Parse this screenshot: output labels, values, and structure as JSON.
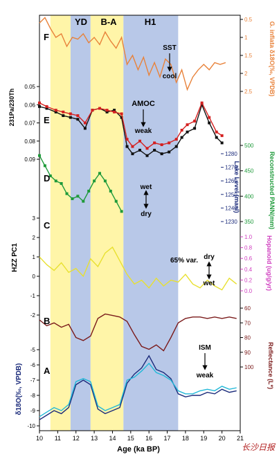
{
  "chart_data": {
    "type": "line",
    "xlabel": "Age (ka BP)",
    "xlim": [
      10,
      21
    ],
    "xticks": [
      10,
      11,
      12,
      13,
      14,
      15,
      16,
      17,
      18,
      19,
      20,
      21
    ],
    "shading": [
      {
        "label": "YD",
        "from": 11.7,
        "to": 12.8,
        "color": "#b8c8e8"
      },
      {
        "label": "B-A",
        "from": 12.8,
        "to": 14.6,
        "color": "#fff5a8"
      },
      {
        "label": "H1",
        "from": 14.6,
        "to": 17.6,
        "color": "#b8c8e8"
      },
      {
        "label": "",
        "from": 10.6,
        "to": 11.7,
        "color": "#fff5a8"
      }
    ],
    "panels": {
      "F": {
        "letter": "F",
        "ylabel": "G. inflata δ18O(‰, VPDB)",
        "ylim": [
          0.5,
          2.5
        ],
        "yticks": [
          0.5,
          1.0,
          1.5,
          2.0,
          2.5
        ],
        "annotation": [
          "SST",
          "cool"
        ],
        "series": [
          {
            "color": "#e8823a",
            "x": [
              10,
              10.3,
              10.6,
              10.9,
              11.2,
              11.5,
              11.8,
              12.1,
              12.4,
              12.7,
              13.0,
              13.3,
              13.6,
              13.9,
              14.2,
              14.5,
              14.8,
              15.1,
              15.4,
              15.7,
              16.0,
              16.3,
              16.6,
              16.9,
              17.2,
              17.5,
              17.8,
              18.1,
              18.4,
              18.7,
              19.0,
              19.3,
              19.6,
              19.9,
              20.2
            ],
            "y": [
              0.6,
              0.45,
              0.75,
              1.0,
              0.9,
              1.25,
              1.0,
              1.05,
              0.9,
              1.15,
              1.0,
              1.2,
              0.85,
              1.1,
              1.3,
              1.0,
              1.75,
              1.5,
              1.9,
              1.55,
              2.05,
              1.7,
              2.1,
              1.6,
              1.75,
              2.25,
              1.9,
              2.45,
              2.1,
              1.9,
              1.75,
              1.9,
              1.7,
              1.75,
              1.7
            ]
          }
        ]
      },
      "E": {
        "letter": "E",
        "ylabel": "231Pa/230Th",
        "ylim": [
          0.05,
          0.09
        ],
        "yticks": [
          0.05,
          0.06,
          0.07,
          0.08,
          0.09
        ],
        "annotation": [
          "AMOC",
          "weak"
        ],
        "series": [
          {
            "color": "#111111",
            "x": [
              10,
              10.4,
              10.9,
              11.3,
              11.7,
              12.1,
              12.5,
              12.9,
              13.3,
              13.7,
              14.1,
              14.5,
              14.8,
              15.1,
              15.5,
              15.9,
              16.3,
              16.7,
              17.1,
              17.5,
              17.8,
              18.1,
              18.5,
              18.9,
              19.3,
              19.7,
              20.0
            ],
            "y": [
              0.061,
              0.062,
              0.064,
              0.066,
              0.067,
              0.068,
              0.073,
              0.063,
              0.062,
              0.064,
              0.063,
              0.067,
              0.083,
              0.087,
              0.085,
              0.088,
              0.085,
              0.087,
              0.086,
              0.083,
              0.078,
              0.075,
              0.073,
              0.06,
              0.07,
              0.078,
              0.081
            ]
          },
          {
            "color": "#d42020",
            "x": [
              10,
              10.4,
              10.9,
              11.3,
              11.7,
              12.1,
              12.5,
              12.9,
              13.3,
              13.7,
              14.1,
              14.5,
              14.8,
              15.1,
              15.5,
              15.9,
              16.3,
              16.7,
              17.1,
              17.5,
              17.8,
              18.1,
              18.5,
              18.9,
              19.3,
              19.7,
              20.0
            ],
            "y": [
              0.059,
              0.061,
              0.063,
              0.064,
              0.065,
              0.066,
              0.07,
              0.063,
              0.062,
              0.063,
              0.064,
              0.065,
              0.079,
              0.083,
              0.08,
              0.084,
              0.081,
              0.082,
              0.081,
              0.079,
              0.074,
              0.071,
              0.069,
              0.059,
              0.067,
              0.075,
              0.077
            ]
          }
        ]
      },
      "D": {
        "letter": "D",
        "ylabel": "Reconstructed PANN(mm)",
        "ylabel_inner": "Lake Level (masl)",
        "ylim": [
          350,
          500
        ],
        "yticks": [
          350,
          400,
          450,
          500
        ],
        "inner_ticks": [
          1230,
          1240,
          1250,
          1260,
          1270,
          1280
        ],
        "annotation": [
          "wet",
          "dry"
        ],
        "series": [
          {
            "color": "#1e9a3a",
            "x": [
              10,
              10.3,
              10.6,
              10.9,
              11.2,
              11.5,
              11.8,
              12.1,
              12.4,
              12.7,
              13.0,
              13.3,
              13.6,
              13.9,
              14.2,
              14.5
            ],
            "y": [
              480,
              460,
              440,
              430,
              425,
              405,
              395,
              400,
              390,
              410,
              430,
              445,
              430,
              410,
              390,
              370
            ]
          }
        ]
      },
      "C": {
        "letter": "C",
        "ylabel": "HZZ PC1",
        "ylabel_right": "Hopanoid (ug/g/yr)",
        "ylim": [
          -2,
          3
        ],
        "yticks": [
          -2,
          -1,
          0,
          1,
          2,
          3
        ],
        "right_ticks": [
          0.0,
          0.2,
          0.4,
          0.6,
          0.8,
          1.0
        ],
        "annotation": [
          "65% var.",
          "dry",
          "wet"
        ],
        "series": [
          {
            "color": "#e8e030",
            "x": [
              10,
              10.4,
              10.8,
              11.2,
              11.6,
              12.0,
              12.4,
              12.8,
              13.2,
              13.6,
              14.0,
              14.4,
              14.8,
              15.2,
              15.6,
              16.0,
              16.4,
              16.8,
              17.2,
              17.6,
              18.0,
              18.4,
              18.8,
              19.2,
              19.6,
              20.0,
              20.4,
              20.8
            ],
            "y": [
              1.0,
              0.6,
              0.3,
              0.7,
              0.2,
              0.4,
              0.0,
              0.9,
              0.5,
              1.2,
              1.5,
              0.8,
              0.1,
              -0.4,
              -0.2,
              -0.6,
              -0.1,
              -0.5,
              -0.2,
              -0.3,
              0.1,
              -0.4,
              -0.6,
              -0.2,
              -0.5,
              -0.7,
              -0.1,
              -0.4
            ]
          }
        ]
      },
      "B": {
        "letter": "B",
        "ylabel": "Reflectance (L*)",
        "ylim": [
          60,
          100
        ],
        "yticks": [
          60,
          70,
          80,
          90,
          100
        ],
        "annotation": [
          "ISM",
          "weak"
        ],
        "series": [
          {
            "color": "#7a1a1a",
            "x": [
              10,
              10.4,
              10.8,
              11.2,
              11.6,
              12.0,
              12.4,
              12.8,
              13.2,
              13.6,
              14.0,
              14.4,
              14.8,
              15.2,
              15.6,
              16.0,
              16.4,
              16.8,
              17.2,
              17.6,
              18.0,
              18.4,
              18.8,
              19.2,
              19.6,
              20.0,
              20.4,
              20.8
            ],
            "y": [
              68,
              72,
              70,
              73,
              71,
              80,
              82,
              79,
              67,
              64,
              65,
              66,
              69,
              78,
              86,
              88,
              85,
              89,
              80,
              70,
              67,
              66,
              66,
              67,
              66,
              67,
              66,
              67
            ]
          }
        ]
      },
      "A": {
        "letter": "A",
        "ylabel": "δ18O(‰, VPDB)",
        "ylim": [
          -10,
          -5
        ],
        "yticks": [
          -10,
          -9,
          -8,
          -7,
          -6,
          -5
        ],
        "series": [
          {
            "color": "#1a2a7a",
            "x": [
              10,
              10.4,
              10.8,
              11.2,
              11.6,
              12.0,
              12.4,
              12.8,
              13.2,
              13.6,
              14.0,
              14.4,
              14.8,
              15.2,
              15.6,
              16.0,
              16.4,
              16.8,
              17.2,
              17.6,
              18.0,
              18.4,
              18.8,
              19.2,
              19.6,
              20.0,
              20.4,
              20.8
            ],
            "y": [
              -9.6,
              -9.3,
              -9.0,
              -9.2,
              -8.8,
              -7.3,
              -7.0,
              -7.3,
              -8.9,
              -9.2,
              -9.0,
              -8.8,
              -7.2,
              -6.6,
              -6.2,
              -5.4,
              -6.3,
              -6.5,
              -6.9,
              -7.9,
              -8.1,
              -8.0,
              -8.0,
              -7.8,
              -7.9,
              -7.6,
              -7.8,
              -7.7
            ]
          },
          {
            "color": "#20b8d8",
            "x": [
              10,
              10.4,
              10.8,
              11.2,
              11.6,
              12.0,
              12.4,
              12.8,
              13.2,
              13.6,
              14.0,
              14.4,
              14.8,
              15.2,
              15.6,
              16.0,
              16.4,
              16.8,
              17.2,
              17.6,
              18.0,
              18.4,
              18.8,
              19.2,
              19.6,
              20.0,
              20.4,
              20.8
            ],
            "y": [
              -9.4,
              -9.1,
              -8.8,
              -9.0,
              -8.6,
              -7.1,
              -6.9,
              -7.1,
              -8.7,
              -9.0,
              -8.8,
              -8.6,
              -7.0,
              -6.8,
              -6.4,
              -5.9,
              -6.5,
              -6.7,
              -7.0,
              -7.7,
              -7.9,
              -7.9,
              -7.7,
              -7.6,
              -7.7,
              -7.4,
              -7.6,
              -7.5
            ]
          }
        ]
      }
    }
  },
  "watermark": "长沙日报"
}
